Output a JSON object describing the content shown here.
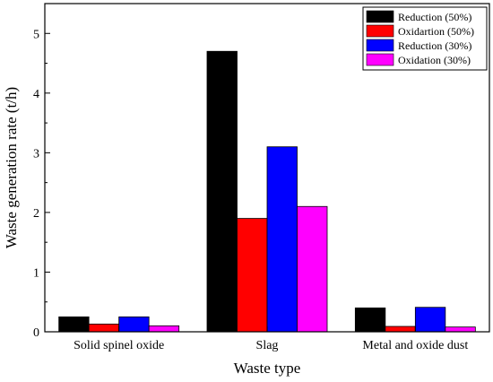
{
  "chart_data": {
    "type": "bar",
    "categories": [
      "Solid spinel oxide",
      "Slag",
      "Metal and oxide dust"
    ],
    "series": [
      {
        "name": "Reduction (50%)",
        "color": "#000000",
        "values": [
          0.25,
          4.7,
          0.4
        ]
      },
      {
        "name": "Oxidartion (50%)",
        "color": "#ff0000",
        "values": [
          0.13,
          1.9,
          0.09
        ]
      },
      {
        "name": "Reduction (30%)",
        "color": "#0000ff",
        "values": [
          0.25,
          3.1,
          0.41
        ]
      },
      {
        "name": "Oxidation (30%)",
        "color": "#ff00ff",
        "values": [
          0.1,
          2.1,
          0.08
        ]
      }
    ],
    "xlabel": "Waste type",
    "ylabel": "Waste generation rate (t/h)",
    "ylim": [
      0,
      5.5
    ],
    "yticks": [
      0,
      1,
      2,
      3,
      4,
      5
    ],
    "legend_position": "top-right",
    "grid": false
  }
}
